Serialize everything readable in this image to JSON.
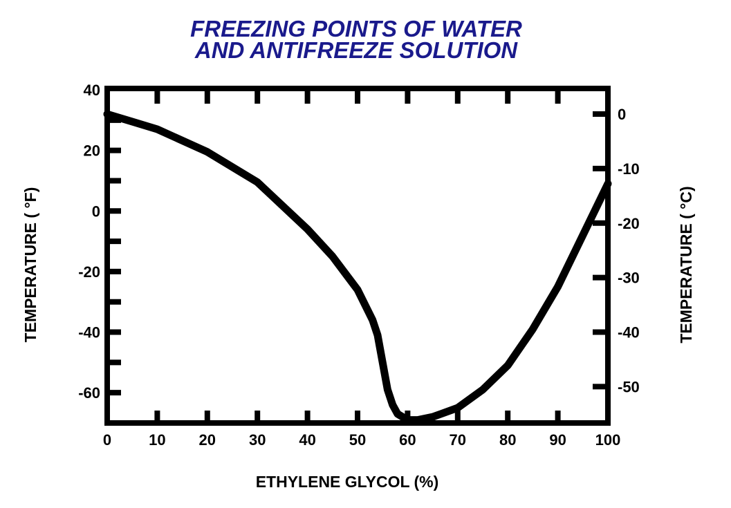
{
  "chart_data": {
    "type": "line",
    "title": [
      "FREEZING POINTS OF WATER",
      "AND ANTIFREEZE SOLUTION"
    ],
    "xlabel": "ETHYLENE GLYCOL (%)",
    "ylabel": "TEMPERATURE ( °F)",
    "ylabel_right": "TEMPERATURE ( °C)",
    "xlim": [
      0,
      100
    ],
    "ylim": [
      -70,
      40
    ],
    "xticks": [
      0,
      10,
      20,
      30,
      40,
      50,
      60,
      70,
      80,
      90,
      100
    ],
    "yticks": [
      40,
      20,
      0,
      -20,
      -40,
      -60
    ],
    "yticks_right": [
      0,
      -10,
      -20,
      -30,
      -40,
      -50
    ],
    "grid": false,
    "title_color": "#1a1a8c",
    "series": [
      {
        "x": [
          0,
          5,
          10,
          20,
          30,
          40,
          45,
          50,
          53,
          54,
          55,
          56,
          57,
          58,
          60,
          62,
          65,
          70,
          75,
          80,
          85,
          90,
          95,
          100
        ],
        "y": [
          32,
          29.5,
          27,
          19.5,
          9.5,
          -6,
          -15,
          -26,
          -36,
          -41,
          -50,
          -59,
          -64,
          -67,
          -69,
          -69,
          -68,
          -65,
          -59,
          -51,
          -39,
          -25,
          -8,
          9
        ]
      }
    ]
  }
}
